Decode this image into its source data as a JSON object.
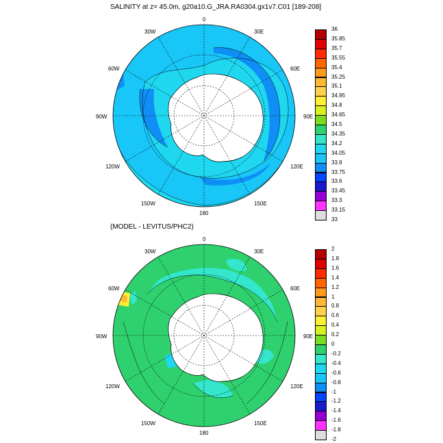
{
  "panel1": {
    "title": "SALINITY at z=  45.0m, g20a10.G_JRA.RA0304.gx1v7.C01 [189-208]",
    "lon_labels": {
      "n": "0",
      "nne": "30E",
      "nnw": "30W",
      "ene": "60E",
      "wnw": "60W",
      "e": "90E",
      "w": "90W",
      "ese": "120E",
      "wsw": "120W",
      "sse": "150E",
      "ssw": "150W",
      "s": "180"
    },
    "colorbar": {
      "labels": [
        "36",
        "35.85",
        "35.7",
        "35.55",
        "35.4",
        "35.25",
        "35.1",
        "34.95",
        "34.8",
        "34.65",
        "34.5",
        "34.35",
        "34.2",
        "34.05",
        "33.9",
        "33.75",
        "33.6",
        "33.45",
        "33.3",
        "33.15",
        "33"
      ],
      "colors": [
        "#b30000",
        "#e00000",
        "#ff2a00",
        "#ff6600",
        "#ff9a1a",
        "#ffb833",
        "#ffd24d",
        "#ffee33",
        "#d8f020",
        "#7cdc22",
        "#2fd16e",
        "#33e6cc",
        "#1fd8f0",
        "#18c6f8",
        "#0f8ff5",
        "#0044ff",
        "#1a1acc",
        "#9400d3",
        "#ff33ff",
        "#dddddd"
      ]
    }
  },
  "panel2": {
    "title": "(MODEL - LEVITUS/PHC2)",
    "lon_labels": {
      "n": "0",
      "nne": "30E",
      "nnw": "30W",
      "ene": "60E",
      "wnw": "60W",
      "e": "90E",
      "w": "90W",
      "ese": "120E",
      "wsw": "120W",
      "sse": "150E",
      "ssw": "150W",
      "s": "180"
    },
    "colorbar": {
      "labels": [
        "2",
        "1.8",
        "1.6",
        "1.4",
        "1.2",
        "1",
        "0.8",
        "0.6",
        "0.4",
        "0.2",
        "0",
        "-0.2",
        "-0.4",
        "-0.6",
        "-0.8",
        "-1",
        "-1.2",
        "-1.4",
        "-1.6",
        "-1.8",
        "-2"
      ],
      "colors": [
        "#b30000",
        "#e00000",
        "#ff2a00",
        "#ff6600",
        "#ff9a1a",
        "#ffb833",
        "#ffd24d",
        "#ffee33",
        "#d8f020",
        "#7cdc22",
        "#2fd16e",
        "#33e6cc",
        "#1fd8f0",
        "#18c6f8",
        "#0f8ff5",
        "#0044ff",
        "#1a1acc",
        "#9400d3",
        "#ff33ff",
        "#dddddd"
      ]
    }
  }
}
